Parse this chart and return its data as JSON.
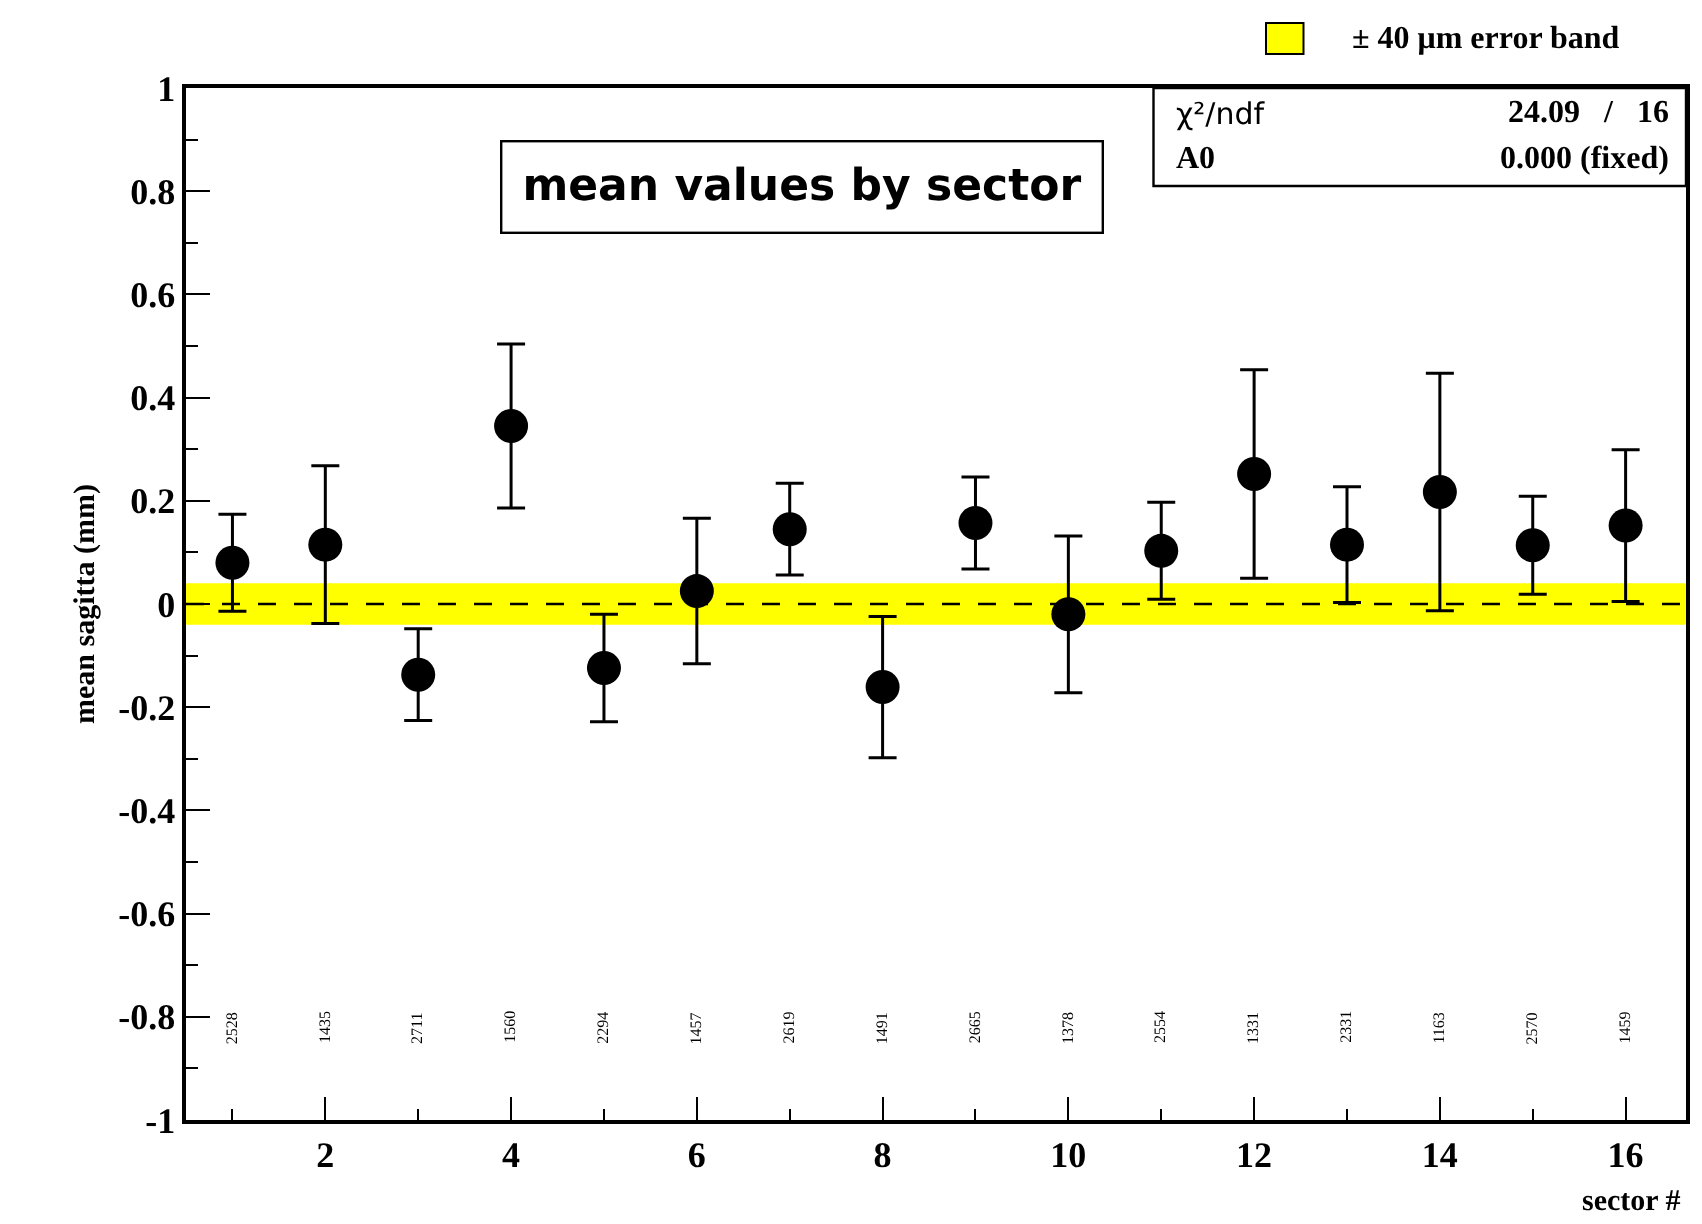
{
  "chart_data": {
    "type": "scatter",
    "title": "mean values by sector",
    "xlabel": "sector #",
    "ylabel": "mean sagitta (mm)",
    "x": [
      1,
      2,
      3,
      4,
      5,
      6,
      7,
      8,
      9,
      10,
      11,
      12,
      13,
      14,
      15,
      16
    ],
    "series": [
      {
        "color": "#000000",
        "values": [
          0.08,
          0.115,
          -0.137,
          0.345,
          -0.124,
          0.025,
          0.145,
          -0.161,
          0.157,
          -0.02,
          0.103,
          0.252,
          0.115,
          0.217,
          0.114,
          0.152
        ],
        "errors": [
          0.094,
          0.153,
          0.089,
          0.159,
          0.104,
          0.141,
          0.089,
          0.137,
          0.089,
          0.152,
          0.094,
          0.202,
          0.112,
          0.23,
          0.095,
          0.147
        ]
      }
    ],
    "marker": "circle",
    "xlim": [
      0.5,
      16.65
    ],
    "xticks": [
      2,
      4,
      6,
      8,
      10,
      12,
      14,
      16
    ],
    "ylim": [
      -1,
      1
    ],
    "yticks": [
      -1,
      -0.8,
      -0.6,
      -0.4,
      -0.2,
      0,
      0.2,
      0.4,
      0.6,
      0.8,
      1
    ],
    "grid": false,
    "legend": "top right",
    "bands": [
      {
        "axis": "y",
        "from": -0.04,
        "to": 0.04,
        "label": "± 40 μm error band",
        "color": "#ffff00"
      }
    ],
    "ref_lines": [
      {
        "axis": "y",
        "value": 0,
        "line_style": "dashed",
        "color": "#000000"
      }
    ],
    "annotations": [
      "χ²/ndf",
      "24.09   /   16",
      "A0",
      "0.000 (fixed)",
      "2528",
      "1435",
      "2711",
      "1560",
      "2294",
      "1457",
      "2619",
      "1491",
      "2665",
      "1378",
      "2554",
      "1331",
      "2331",
      "1163",
      "2570",
      "1459"
    ]
  }
}
